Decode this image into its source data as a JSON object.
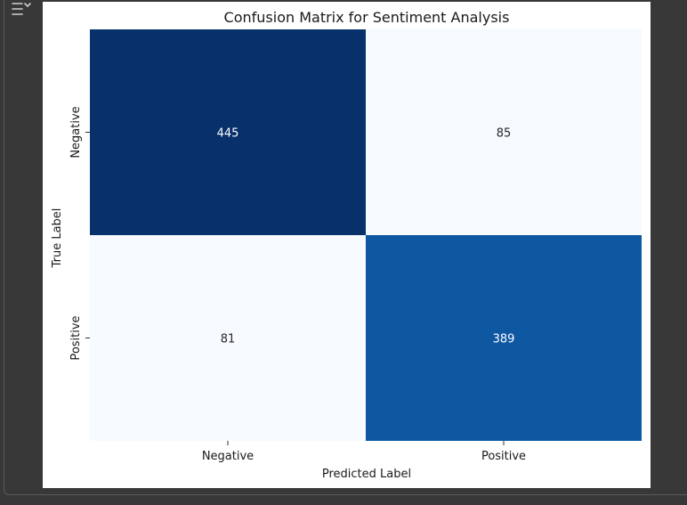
{
  "chart_data": {
    "type": "heatmap",
    "title": "Confusion Matrix for Sentiment Analysis",
    "xlabel": "Predicted Label",
    "ylabel": "True Label",
    "x_categories": [
      "Negative",
      "Positive"
    ],
    "y_categories": [
      "Negative",
      "Positive"
    ],
    "values": [
      [
        445,
        85
      ],
      [
        81,
        389
      ]
    ],
    "colormap": "Blues",
    "color_min": "#f7fbff",
    "color_max": "#08306b",
    "colorbar": false
  },
  "icons": {
    "output_toggle": "output-settings-icon"
  }
}
